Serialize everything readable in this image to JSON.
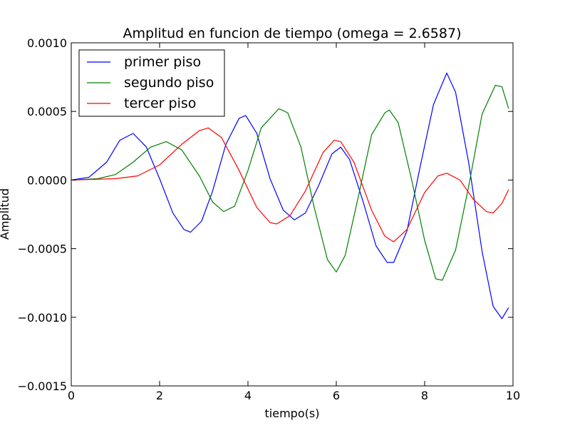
{
  "chart_data": {
    "type": "line",
    "title": "Amplitud en funcion de tiempo (omega = 2.6587)",
    "xlabel": "tiempo(s)",
    "ylabel": "Amplitud",
    "xlim": [
      0,
      10
    ],
    "ylim": [
      -0.0015,
      0.001
    ],
    "xticks": [
      0,
      2,
      4,
      6,
      8,
      10
    ],
    "xtick_labels": [
      "0",
      "2",
      "4",
      "6",
      "8",
      "10"
    ],
    "yticks": [
      -0.0015,
      -0.001,
      -0.0005,
      0.0,
      0.0005,
      0.001
    ],
    "ytick_labels": [
      "−0.0015",
      "−0.0010",
      "−0.0005",
      "0.0000",
      "0.0005",
      "0.0010"
    ],
    "grid": false,
    "legend_position": "top-left",
    "series": [
      {
        "name": "primer piso",
        "color": "#0000ff",
        "points": [
          [
            0,
            0
          ],
          [
            0.4,
            2e-05
          ],
          [
            0.8,
            0.00013
          ],
          [
            1.1,
            0.00029
          ],
          [
            1.4,
            0.00034
          ],
          [
            1.7,
            0.00024
          ],
          [
            2.0,
            1e-05
          ],
          [
            2.3,
            -0.00024
          ],
          [
            2.55,
            -0.00036
          ],
          [
            2.7,
            -0.00038
          ],
          [
            2.95,
            -0.0003
          ],
          [
            3.2,
            -8e-05
          ],
          [
            3.5,
            0.00026
          ],
          [
            3.8,
            0.00045
          ],
          [
            3.95,
            0.00047
          ],
          [
            4.2,
            0.00034
          ],
          [
            4.5,
            1e-05
          ],
          [
            4.8,
            -0.00022
          ],
          [
            5.05,
            -0.00029
          ],
          [
            5.3,
            -0.00024
          ],
          [
            5.6,
            -4e-05
          ],
          [
            5.9,
            0.00019
          ],
          [
            6.1,
            0.00024
          ],
          [
            6.3,
            0.00015
          ],
          [
            6.6,
            -0.00015
          ],
          [
            6.9,
            -0.00048
          ],
          [
            7.15,
            -0.0006
          ],
          [
            7.3,
            -0.0006
          ],
          [
            7.6,
            -0.00037
          ],
          [
            7.9,
            0.0001
          ],
          [
            8.2,
            0.00055
          ],
          [
            8.5,
            0.00078
          ],
          [
            8.7,
            0.00064
          ],
          [
            9.0,
            0.00012
          ],
          [
            9.3,
            -0.00052
          ],
          [
            9.55,
            -0.00092
          ],
          [
            9.75,
            -0.00101
          ],
          [
            9.9,
            -0.00093
          ]
        ]
      },
      {
        "name": "segundo piso",
        "color": "#008000",
        "points": [
          [
            0,
            0
          ],
          [
            0.6,
            1e-05
          ],
          [
            1.0,
            4e-05
          ],
          [
            1.4,
            0.00013
          ],
          [
            1.8,
            0.00024
          ],
          [
            2.15,
            0.00028
          ],
          [
            2.5,
            0.00022
          ],
          [
            2.9,
            3e-05
          ],
          [
            3.2,
            -0.00016
          ],
          [
            3.45,
            -0.00023
          ],
          [
            3.7,
            -0.00019
          ],
          [
            4.0,
            7e-05
          ],
          [
            4.3,
            0.00038
          ],
          [
            4.7,
            0.00052
          ],
          [
            4.9,
            0.00049
          ],
          [
            5.2,
            0.00024
          ],
          [
            5.5,
            -0.0002
          ],
          [
            5.8,
            -0.00058
          ],
          [
            6.0,
            -0.00067
          ],
          [
            6.2,
            -0.00055
          ],
          [
            6.5,
            -0.00012
          ],
          [
            6.8,
            0.00033
          ],
          [
            7.1,
            0.00049
          ],
          [
            7.2,
            0.00051
          ],
          [
            7.4,
            0.00042
          ],
          [
            7.7,
            1e-05
          ],
          [
            8.0,
            -0.00044
          ],
          [
            8.25,
            -0.00072
          ],
          [
            8.4,
            -0.00073
          ],
          [
            8.7,
            -0.00051
          ],
          [
            9.0,
            -4e-05
          ],
          [
            9.3,
            0.00048
          ],
          [
            9.6,
            0.00069
          ],
          [
            9.75,
            0.00068
          ],
          [
            9.9,
            0.00052
          ]
        ]
      },
      {
        "name": "tercer piso",
        "color": "#ff0000",
        "points": [
          [
            0,
            0
          ],
          [
            1.0,
            1e-05
          ],
          [
            1.5,
            3e-05
          ],
          [
            2.0,
            0.00011
          ],
          [
            2.5,
            0.00026
          ],
          [
            2.9,
            0.00036
          ],
          [
            3.1,
            0.00038
          ],
          [
            3.4,
            0.00031
          ],
          [
            3.8,
            7e-05
          ],
          [
            4.2,
            -0.0002
          ],
          [
            4.5,
            -0.00031
          ],
          [
            4.65,
            -0.00032
          ],
          [
            4.95,
            -0.00026
          ],
          [
            5.3,
            -8e-05
          ],
          [
            5.7,
            0.0002
          ],
          [
            5.95,
            0.00029
          ],
          [
            6.1,
            0.00028
          ],
          [
            6.4,
            0.00013
          ],
          [
            6.8,
            -0.00022
          ],
          [
            7.1,
            -0.00041
          ],
          [
            7.3,
            -0.00045
          ],
          [
            7.6,
            -0.00036
          ],
          [
            8.0,
            -9e-05
          ],
          [
            8.3,
            3e-05
          ],
          [
            8.5,
            5e-05
          ],
          [
            8.8,
            0.0
          ],
          [
            9.1,
            -0.00014
          ],
          [
            9.4,
            -0.00023
          ],
          [
            9.55,
            -0.00024
          ],
          [
            9.75,
            -0.00017
          ],
          [
            9.9,
            -7e-05
          ]
        ]
      }
    ]
  }
}
